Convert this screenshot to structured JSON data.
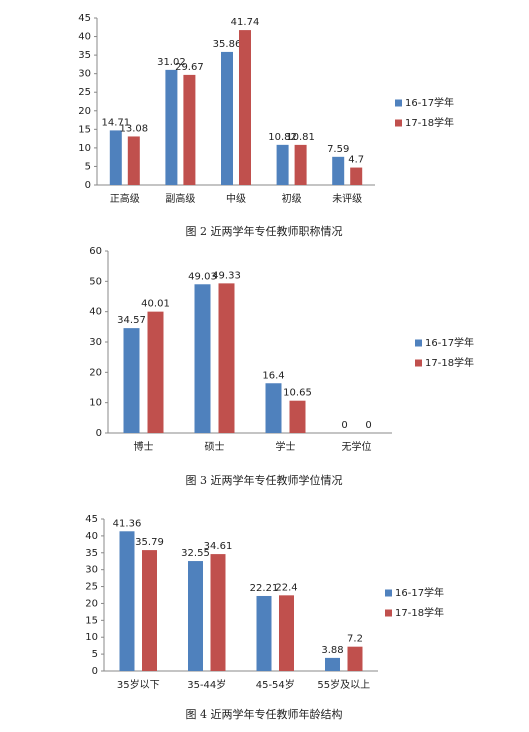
{
  "chart_data": [
    {
      "type": "bar",
      "title": "图 2  近两学年专任教师职称情况",
      "categories": [
        "正高级",
        "副高级",
        "中级",
        "初级",
        "未评级"
      ],
      "series": [
        {
          "name": "16-17学年",
          "color": "#4f81bd",
          "values": [
            14.71,
            31.02,
            35.86,
            10.82,
            7.59
          ]
        },
        {
          "name": "17-18学年",
          "color": "#c0504d",
          "values": [
            13.08,
            29.67,
            41.74,
            10.81,
            4.7
          ]
        }
      ],
      "ylim": [
        0,
        45
      ],
      "yticks": [
        0,
        5,
        10,
        15,
        20,
        25,
        30,
        35,
        40,
        45
      ],
      "legend": "right"
    },
    {
      "type": "bar",
      "title": "图 3  近两学年专任教师学位情况",
      "categories": [
        "博士",
        "硕士",
        "学士",
        "无学位"
      ],
      "series": [
        {
          "name": "16-17学年",
          "color": "#4f81bd",
          "values": [
            34.57,
            49.03,
            16.4,
            0
          ]
        },
        {
          "name": "17-18学年",
          "color": "#c0504d",
          "values": [
            40.01,
            49.33,
            10.65,
            0
          ]
        }
      ],
      "ylim": [
        0,
        60
      ],
      "yticks": [
        0,
        10,
        20,
        30,
        40,
        50,
        60
      ],
      "legend": "right"
    },
    {
      "type": "bar",
      "title": "图 4  近两学年专任教师年龄结构",
      "categories": [
        "35岁以下",
        "35-44岁",
        "45-54岁",
        "55岁及以上"
      ],
      "series": [
        {
          "name": "16-17学年",
          "color": "#4f81bd",
          "values": [
            41.36,
            32.55,
            22.21,
            3.88
          ]
        },
        {
          "name": "17-18学年",
          "color": "#c0504d",
          "values": [
            35.79,
            34.61,
            22.4,
            7.2
          ]
        }
      ],
      "ylim": [
        0,
        45
      ],
      "yticks": [
        0,
        5,
        10,
        15,
        20,
        25,
        30,
        35,
        40,
        45
      ],
      "legend": "right"
    }
  ]
}
